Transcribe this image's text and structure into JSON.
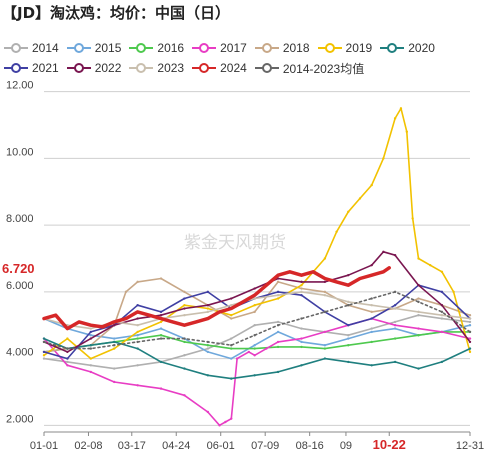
{
  "title": "【JD】淘汰鸡：均价：中国（日）",
  "watermark": "紫金天风期货",
  "last_value_label": "6.720",
  "highlight_tick": "10-22",
  "colors": {
    "2014": "#b0b0b0",
    "2015": "#6fa8dc",
    "2016": "#4ec94e",
    "2017": "#e83dc4",
    "2018": "#c8a888",
    "2019": "#f2c200",
    "2020": "#1f7f7f",
    "2021": "#3f3fa3",
    "2022": "#7a1650",
    "2023": "#c9bfae",
    "2024": "#d62728",
    "avg": "#666666"
  },
  "legend_rows": [
    [
      "2014",
      "2015",
      "2016",
      "2017",
      "2018",
      "2019",
      "2020"
    ],
    [
      "2021",
      "2022",
      "2023",
      "2024",
      "2014-2023均值"
    ]
  ],
  "chart_data": {
    "type": "line",
    "title": "【JD】淘汰鸡：均价：中国（日）",
    "xlabel": "",
    "ylabel": "",
    "ylim": [
      1.8,
      12.2
    ],
    "y_ticks": [
      "2.000",
      "4.000",
      "6.000",
      "8.000",
      "10.00",
      "12.00"
    ],
    "x_tick_labels": [
      "01-01",
      "02-08",
      "03-17",
      "04-24",
      "06-01",
      "07-09",
      "08-16",
      "09",
      "10-22",
      "12-31"
    ],
    "x_tick_days": [
      0,
      38,
      75,
      113,
      151,
      189,
      227,
      258,
      295,
      364
    ],
    "series": [
      {
        "name": "2014",
        "key": "2014",
        "x": [
          0,
          20,
          40,
          60,
          80,
          100,
          120,
          140,
          160,
          180,
          200,
          220,
          240,
          260,
          280,
          300,
          320,
          340,
          364
        ],
        "values": [
          4.0,
          3.9,
          3.8,
          3.7,
          3.8,
          3.9,
          4.1,
          4.3,
          4.6,
          5.0,
          5.1,
          4.9,
          4.8,
          4.7,
          4.9,
          5.1,
          5.3,
          5.2,
          5.1
        ]
      },
      {
        "name": "2015",
        "key": "2015",
        "x": [
          0,
          20,
          40,
          60,
          80,
          100,
          120,
          140,
          160,
          180,
          200,
          220,
          240,
          260,
          280,
          300,
          320,
          340,
          364
        ],
        "values": [
          5.2,
          4.9,
          4.7,
          4.6,
          4.7,
          4.9,
          4.6,
          4.2,
          4.0,
          4.4,
          4.8,
          4.5,
          4.4,
          4.6,
          4.8,
          4.9,
          4.7,
          4.8,
          5.0
        ]
      },
      {
        "name": "2016",
        "key": "2016",
        "x": [
          0,
          20,
          40,
          60,
          80,
          100,
          120,
          140,
          160,
          180,
          200,
          220,
          240,
          260,
          280,
          300,
          320,
          340,
          364
        ],
        "values": [
          4.2,
          4.3,
          4.4,
          4.5,
          4.6,
          4.7,
          4.5,
          4.4,
          4.3,
          4.3,
          4.35,
          4.35,
          4.3,
          4.4,
          4.5,
          4.6,
          4.7,
          4.8,
          4.8
        ]
      },
      {
        "name": "2017",
        "key": "2017",
        "x": [
          0,
          20,
          40,
          60,
          80,
          100,
          120,
          140,
          150,
          155,
          160,
          165,
          175,
          180,
          190,
          200,
          220,
          240,
          260,
          280,
          300,
          320,
          340,
          364
        ],
        "values": [
          4.6,
          3.8,
          3.6,
          3.3,
          3.2,
          3.1,
          2.9,
          2.4,
          2.0,
          2.1,
          2.2,
          4.0,
          4.2,
          4.1,
          4.3,
          4.5,
          4.6,
          4.8,
          5.0,
          5.2,
          5.0,
          4.9,
          4.8,
          4.6
        ]
      },
      {
        "name": "2018",
        "key": "2018",
        "x": [
          0,
          20,
          40,
          60,
          70,
          80,
          100,
          120,
          140,
          160,
          180,
          200,
          220,
          240,
          260,
          280,
          300,
          320,
          340,
          364
        ],
        "values": [
          4.2,
          4.3,
          4.4,
          5.0,
          6.0,
          6.3,
          6.4,
          6.0,
          5.6,
          5.2,
          5.4,
          6.3,
          6.1,
          6.0,
          5.6,
          5.4,
          5.5,
          5.8,
          5.6,
          5.3
        ]
      },
      {
        "name": "2019",
        "key": "2019",
        "x": [
          0,
          20,
          40,
          60,
          80,
          100,
          120,
          140,
          160,
          180,
          200,
          220,
          240,
          250,
          260,
          270,
          280,
          290,
          300,
          305,
          310,
          315,
          320,
          330,
          340,
          350,
          364
        ],
        "values": [
          4.1,
          4.6,
          4.0,
          4.3,
          4.8,
          5.1,
          5.6,
          5.5,
          5.3,
          5.6,
          5.8,
          6.2,
          7.0,
          7.8,
          8.4,
          8.8,
          9.2,
          10.0,
          11.2,
          11.5,
          10.8,
          8.2,
          7.0,
          6.8,
          6.6,
          6.0,
          4.2
        ]
      },
      {
        "name": "2020",
        "key": "2020",
        "x": [
          0,
          20,
          40,
          60,
          80,
          100,
          120,
          140,
          160,
          180,
          200,
          220,
          240,
          260,
          280,
          300,
          320,
          340,
          364
        ],
        "values": [
          4.6,
          4.3,
          4.4,
          4.5,
          4.3,
          3.9,
          3.7,
          3.5,
          3.4,
          3.5,
          3.6,
          3.8,
          4.0,
          3.9,
          3.8,
          3.9,
          3.7,
          3.9,
          4.3
        ]
      },
      {
        "name": "2021",
        "key": "2021",
        "x": [
          0,
          20,
          40,
          60,
          80,
          100,
          120,
          140,
          160,
          180,
          200,
          220,
          240,
          260,
          280,
          300,
          320,
          340,
          364
        ],
        "values": [
          4.2,
          4.0,
          4.8,
          5.0,
          5.6,
          5.4,
          5.8,
          6.0,
          5.5,
          5.8,
          6.0,
          5.9,
          5.4,
          5.0,
          5.2,
          5.6,
          6.2,
          6.0,
          5.2
        ]
      },
      {
        "name": "2022",
        "key": "2022",
        "x": [
          0,
          20,
          40,
          60,
          80,
          100,
          120,
          140,
          160,
          180,
          200,
          220,
          240,
          260,
          280,
          290,
          300,
          320,
          340,
          364
        ],
        "values": [
          4.5,
          4.2,
          4.6,
          5.0,
          5.2,
          5.3,
          5.5,
          5.6,
          5.8,
          6.1,
          6.4,
          6.3,
          6.3,
          6.5,
          6.8,
          7.2,
          7.1,
          6.2,
          5.6,
          4.5
        ]
      },
      {
        "name": "2023",
        "key": "2023",
        "x": [
          0,
          20,
          40,
          60,
          80,
          100,
          120,
          140,
          160,
          180,
          200,
          220,
          240,
          260,
          280,
          300,
          320,
          340,
          364
        ],
        "values": [
          5.2,
          5.0,
          4.9,
          5.1,
          5.0,
          5.2,
          5.3,
          5.4,
          5.6,
          5.8,
          5.9,
          6.0,
          5.9,
          5.7,
          5.6,
          5.5,
          5.4,
          5.3,
          5.2
        ]
      },
      {
        "name": "2024",
        "key": "2024",
        "x": [
          0,
          10,
          20,
          30,
          40,
          50,
          60,
          70,
          80,
          90,
          100,
          110,
          120,
          130,
          140,
          150,
          160,
          170,
          180,
          190,
          200,
          210,
          220,
          230,
          240,
          250,
          260,
          270,
          280,
          290,
          295
        ],
        "values": [
          5.2,
          5.3,
          4.9,
          5.1,
          5.0,
          4.95,
          5.1,
          5.2,
          5.4,
          5.3,
          5.2,
          5.1,
          5.0,
          5.1,
          5.2,
          5.4,
          5.5,
          5.7,
          5.9,
          6.2,
          6.5,
          6.6,
          6.5,
          6.6,
          6.4,
          6.3,
          6.2,
          6.4,
          6.5,
          6.6,
          6.72
        ]
      },
      {
        "name": "2014-2023均值",
        "key": "avg",
        "x": [
          0,
          20,
          40,
          60,
          80,
          100,
          120,
          140,
          160,
          180,
          200,
          220,
          240,
          260,
          280,
          300,
          320,
          340,
          364
        ],
        "values": [
          4.5,
          4.3,
          4.3,
          4.4,
          4.5,
          4.6,
          4.6,
          4.5,
          4.4,
          4.7,
          5.0,
          5.2,
          5.4,
          5.6,
          5.8,
          6.0,
          5.7,
          5.4,
          4.8
        ]
      }
    ]
  }
}
